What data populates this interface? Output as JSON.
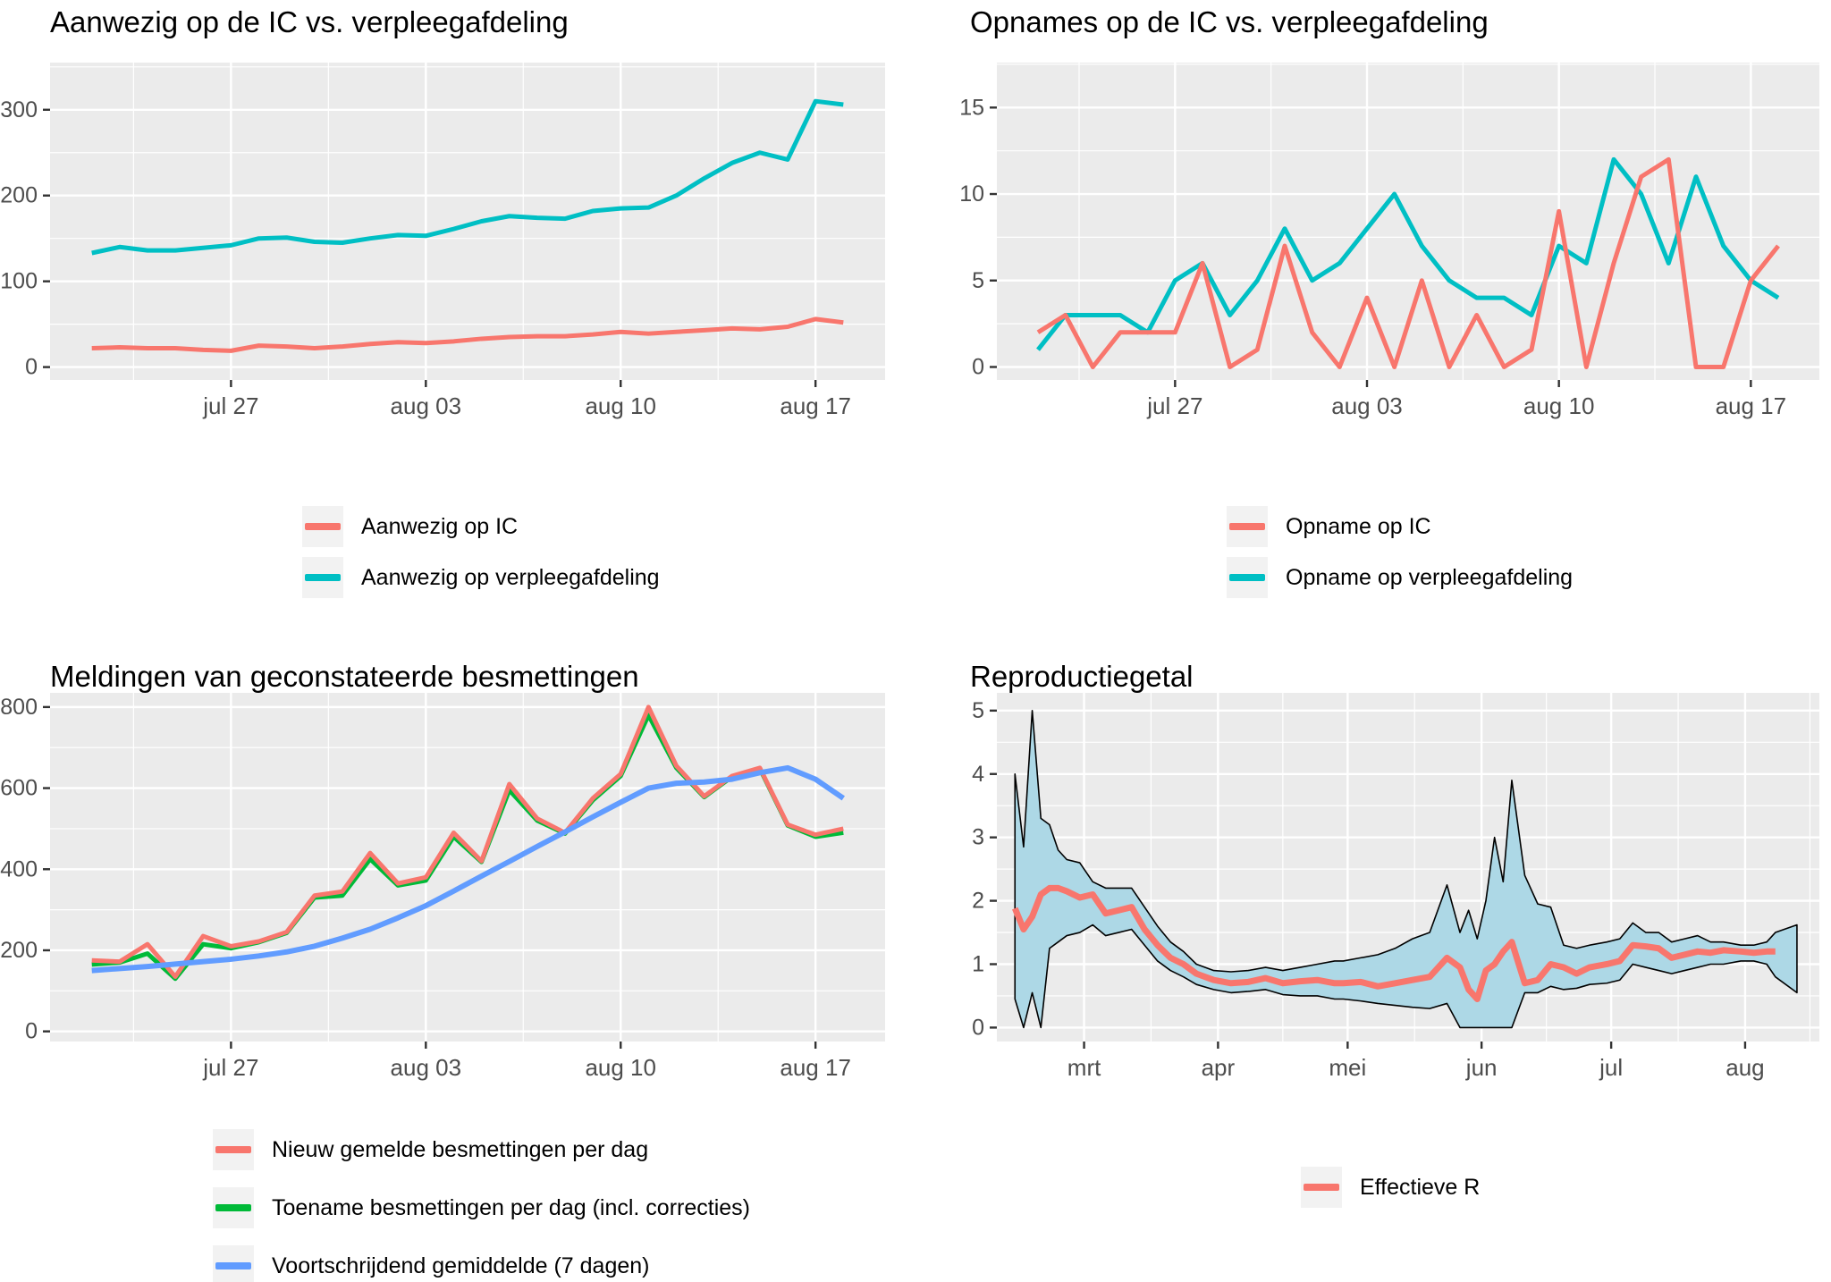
{
  "panel_style": {
    "panel_bg": "#EBEBEB",
    "grid_color": "#FFFFFF",
    "axis_text_color": "#4D4D4D",
    "tick_mark_color": "#333333",
    "title_color": "#000000",
    "legend_key_bg": "#F2F2F2",
    "band_fill": "#ADD8E6",
    "band_outline": "#000000"
  },
  "chart_data": [
    {
      "id": "aanwezig",
      "type": "line",
      "title": "Aanwezig op de IC vs. verpleegafdeling",
      "x_mode": "index",
      "x_total": 27,
      "x_ticks": [
        {
          "label": "jul 27",
          "at": 5
        },
        {
          "label": "aug 03",
          "at": 12
        },
        {
          "label": "aug 10",
          "at": 19
        },
        {
          "label": "aug 17",
          "at": 26
        }
      ],
      "x_minor": [
        1.5,
        8.5,
        15.5,
        22.5
      ],
      "ylim": [
        -15,
        355
      ],
      "y_major": [
        0,
        100,
        200,
        300
      ],
      "y_minor": [
        50,
        150,
        250,
        350
      ],
      "series": [
        {
          "name": "Aanwezig op IC",
          "color": "#F8766D",
          "width": 5,
          "values": [
            22,
            23,
            22,
            22,
            20,
            19,
            25,
            24,
            22,
            24,
            27,
            29,
            28,
            30,
            33,
            35,
            36,
            36,
            38,
            41,
            39,
            41,
            43,
            45,
            44,
            47,
            56,
            52
          ]
        },
        {
          "name": "Aanwezig op verpleegafdeling",
          "color": "#00BFC4",
          "width": 5,
          "values": [
            133,
            140,
            136,
            136,
            139,
            142,
            150,
            151,
            146,
            145,
            150,
            154,
            153,
            161,
            170,
            176,
            174,
            173,
            182,
            185,
            186,
            200,
            220,
            238,
            250,
            242,
            310,
            306
          ]
        }
      ],
      "legend": [
        {
          "label": "Aanwezig op IC",
          "color": "#F8766D"
        },
        {
          "label": "Aanwezig op verpleegafdeling",
          "color": "#00BFC4"
        }
      ]
    },
    {
      "id": "opnames",
      "type": "line",
      "title": "Opnames op de IC vs. verpleegafdeling",
      "x_mode": "index",
      "x_total": 27,
      "x_ticks": [
        {
          "label": "jul 27",
          "at": 5
        },
        {
          "label": "aug 03",
          "at": 12
        },
        {
          "label": "aug 10",
          "at": 19
        },
        {
          "label": "aug 17",
          "at": 26
        }
      ],
      "x_minor": [
        1.5,
        8.5,
        15.5,
        22.5
      ],
      "ylim": [
        -0.75,
        17.6
      ],
      "y_major": [
        0,
        5,
        10,
        15
      ],
      "y_minor": [
        2.5,
        7.5,
        12.5,
        17.5
      ],
      "series": [
        {
          "name": "Opname op verpleegafdeling",
          "color": "#00BFC4",
          "width": 5,
          "values": [
            1,
            3,
            3,
            3,
            2,
            5,
            6,
            3,
            5,
            8,
            5,
            6,
            8,
            10,
            7,
            5,
            4,
            4,
            3,
            7,
            6,
            12,
            10,
            6,
            11,
            7,
            5,
            4
          ]
        },
        {
          "name": "Opname op IC",
          "color": "#F8766D",
          "width": 5,
          "values": [
            2,
            3,
            0,
            2,
            2,
            2,
            6,
            0,
            1,
            7,
            2,
            0,
            4,
            0,
            5,
            0,
            3,
            0,
            1,
            9,
            0,
            6,
            11,
            12,
            0,
            0,
            5,
            7
          ]
        }
      ],
      "legend": [
        {
          "label": "Opname op IC",
          "color": "#F8766D"
        },
        {
          "label": "Opname op verpleegafdeling",
          "color": "#00BFC4"
        }
      ]
    },
    {
      "id": "meldingen",
      "type": "line",
      "title": "Meldingen van geconstateerde besmettingen",
      "x_mode": "index",
      "x_total": 27,
      "x_ticks": [
        {
          "label": "jul 27",
          "at": 5
        },
        {
          "label": "aug 03",
          "at": 12
        },
        {
          "label": "aug 10",
          "at": 19
        },
        {
          "label": "aug 17",
          "at": 26
        }
      ],
      "x_minor": [
        1.5,
        8.5,
        15.5,
        22.5
      ],
      "ylim": [
        -25,
        835
      ],
      "y_major": [
        0,
        200,
        400,
        600,
        800
      ],
      "y_minor": [
        100,
        300,
        500,
        700
      ],
      "series": [
        {
          "name": "Toename besmettingen per dag (incl. correcties)",
          "color": "#00BA38",
          "width": 5,
          "values": [
            165,
            170,
            192,
            130,
            215,
            205,
            220,
            243,
            330,
            335,
            425,
            360,
            372,
            480,
            418,
            595,
            520,
            488,
            570,
            630,
            780,
            650,
            578,
            628,
            648,
            508,
            480,
            490
          ]
        },
        {
          "name": "Nieuw gemelde besmettingen per dag",
          "color": "#F8766D",
          "width": 5,
          "values": [
            175,
            172,
            215,
            135,
            235,
            210,
            222,
            245,
            335,
            345,
            440,
            365,
            380,
            490,
            420,
            610,
            525,
            490,
            575,
            635,
            800,
            655,
            580,
            630,
            650,
            510,
            485,
            500
          ]
        },
        {
          "name": "Voortschrijdend gemiddelde (7 dagen)",
          "color": "#619CFF",
          "width": 6,
          "values": [
            150,
            155,
            160,
            166,
            172,
            178,
            186,
            196,
            210,
            230,
            252,
            280,
            310,
            346,
            383,
            419,
            456,
            492,
            529,
            565,
            600,
            612,
            615,
            622,
            638,
            650,
            622,
            575
          ]
        }
      ],
      "legend": [
        {
          "label": "Nieuw gemelde besmettingen per dag",
          "color": "#F8766D"
        },
        {
          "label": "Toename besmettingen per dag (incl. correcties)",
          "color": "#00BA38"
        },
        {
          "label": "Voortschrijdend gemiddelde (7 dagen)",
          "color": "#619CFF"
        }
      ]
    },
    {
      "id": "reproductiegetal",
      "type": "line",
      "title": "Reproductiegetal",
      "x_mode": "days",
      "x_total": 182,
      "x_ticks": [
        {
          "label": "mrt",
          "at": 16
        },
        {
          "label": "apr",
          "at": 47
        },
        {
          "label": "mei",
          "at": 77
        },
        {
          "label": "jun",
          "at": 108
        },
        {
          "label": "jul",
          "at": 138
        },
        {
          "label": "aug",
          "at": 169
        }
      ],
      "x_minor": [
        31.5,
        62,
        92.5,
        123,
        153.5,
        184
      ],
      "ylim": [
        -0.22,
        5.28
      ],
      "y_major": [
        0,
        1,
        2,
        3,
        4,
        5
      ],
      "y_minor": [
        0.5,
        1.5,
        2.5,
        3.5,
        4.5
      ],
      "band": {
        "fill": "#ADD8E6",
        "outline": "#000000",
        "x": [
          0,
          2,
          4,
          6,
          8,
          10,
          12,
          15,
          18,
          21,
          24,
          27,
          30,
          33,
          36,
          39,
          42,
          46,
          50,
          54,
          58,
          62,
          66,
          70,
          74,
          76,
          80,
          84,
          88,
          92,
          96,
          100,
          103,
          105,
          107,
          109,
          111,
          113,
          115,
          118,
          121,
          124,
          127,
          130,
          133,
          137,
          140,
          143,
          146,
          149,
          152,
          155,
          158,
          161,
          164,
          168,
          171,
          174,
          176,
          181
        ],
        "hi": [
          4.0,
          2.85,
          5.0,
          3.3,
          3.2,
          2.8,
          2.65,
          2.6,
          2.3,
          2.2,
          2.2,
          2.2,
          1.9,
          1.6,
          1.35,
          1.2,
          1.0,
          0.9,
          0.88,
          0.9,
          0.95,
          0.9,
          0.95,
          1.0,
          1.05,
          1.05,
          1.1,
          1.15,
          1.25,
          1.4,
          1.5,
          2.25,
          1.5,
          1.85,
          1.4,
          2.0,
          3.0,
          2.3,
          3.9,
          2.4,
          1.95,
          1.9,
          1.3,
          1.25,
          1.3,
          1.35,
          1.4,
          1.65,
          1.5,
          1.5,
          1.35,
          1.4,
          1.45,
          1.35,
          1.35,
          1.3,
          1.3,
          1.35,
          1.5,
          1.62
        ],
        "lo": [
          0.45,
          0.0,
          0.55,
          0.0,
          1.25,
          1.35,
          1.45,
          1.5,
          1.62,
          1.45,
          1.5,
          1.55,
          1.3,
          1.05,
          0.9,
          0.8,
          0.68,
          0.6,
          0.55,
          0.57,
          0.6,
          0.52,
          0.5,
          0.5,
          0.45,
          0.45,
          0.42,
          0.38,
          0.35,
          0.32,
          0.3,
          0.38,
          0.0,
          0.0,
          0.0,
          0.0,
          0.0,
          0.0,
          0.0,
          0.55,
          0.55,
          0.65,
          0.6,
          0.62,
          0.68,
          0.7,
          0.75,
          1.0,
          0.95,
          0.9,
          0.85,
          0.9,
          0.95,
          1.0,
          1.0,
          1.05,
          1.05,
          1.0,
          0.8,
          0.55
        ]
      },
      "series": [
        {
          "name": "Effectieve R",
          "color": "#F8766D",
          "width": 7,
          "x": [
            0,
            2,
            4,
            6,
            8,
            10,
            12,
            15,
            18,
            21,
            24,
            27,
            30,
            33,
            36,
            39,
            42,
            46,
            50,
            54,
            58,
            62,
            66,
            70,
            74,
            76,
            80,
            84,
            88,
            92,
            96,
            100,
            103,
            105,
            107,
            109,
            111,
            113,
            115,
            118,
            121,
            124,
            127,
            130,
            133,
            137,
            140,
            143,
            146,
            149,
            152,
            155,
            158,
            161,
            164,
            168,
            171,
            174,
            176
          ],
          "values": [
            1.88,
            1.55,
            1.75,
            2.1,
            2.2,
            2.2,
            2.15,
            2.05,
            2.1,
            1.8,
            1.85,
            1.9,
            1.55,
            1.3,
            1.1,
            1.0,
            0.85,
            0.75,
            0.7,
            0.72,
            0.78,
            0.7,
            0.73,
            0.75,
            0.7,
            0.7,
            0.72,
            0.65,
            0.7,
            0.75,
            0.8,
            1.1,
            0.95,
            0.6,
            0.45,
            0.9,
            1.0,
            1.2,
            1.35,
            0.7,
            0.75,
            1.0,
            0.95,
            0.85,
            0.95,
            1.0,
            1.05,
            1.3,
            1.28,
            1.25,
            1.1,
            1.15,
            1.2,
            1.18,
            1.22,
            1.2,
            1.18,
            1.2,
            1.2
          ]
        }
      ],
      "legend": [
        {
          "label": "Effectieve R",
          "color": "#F8766D"
        }
      ]
    }
  ]
}
